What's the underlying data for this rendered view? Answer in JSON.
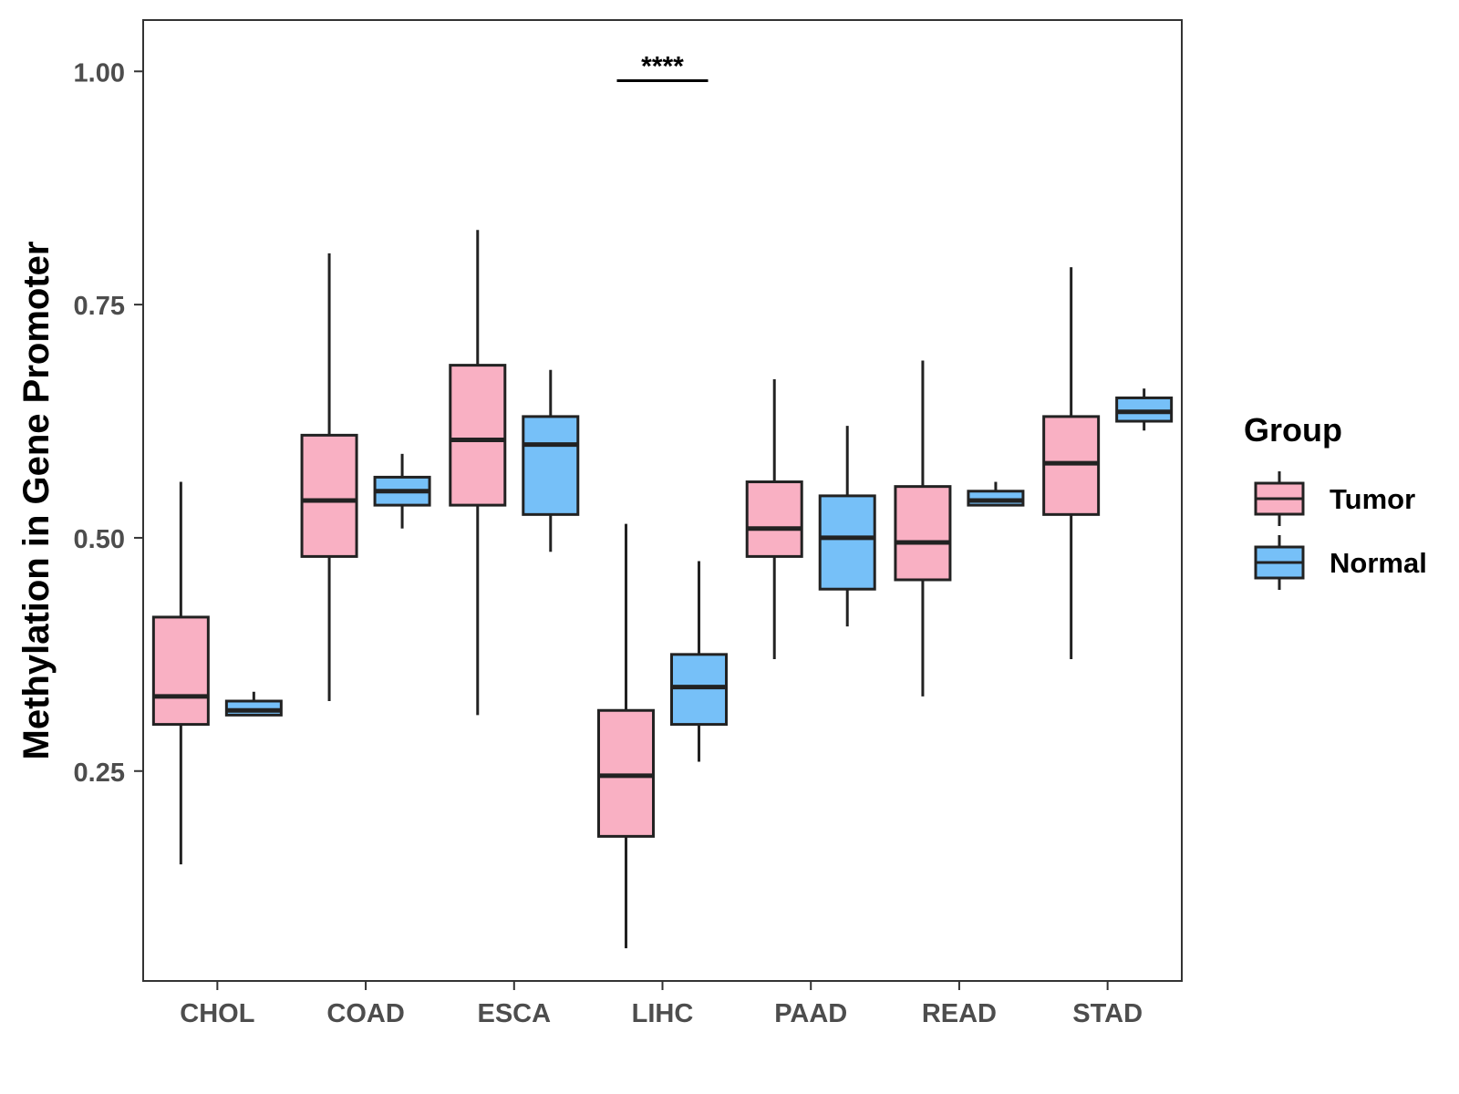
{
  "chart_data": {
    "type": "boxplot",
    "title": "",
    "xlabel": "",
    "ylabel": "Methylation in Gene Promoter",
    "ylim": [
      0.025,
      1.055
    ],
    "y_ticks": [
      "0.25",
      "0.50",
      "0.75",
      "1.00"
    ],
    "y_tick_values": [
      0.25,
      0.5,
      0.75,
      1.0
    ],
    "grid": false,
    "legend": {
      "title": "Group",
      "position": "right"
    },
    "categories": [
      "CHOL",
      "COAD",
      "ESCA",
      "LIHC",
      "PAAD",
      "READ",
      "STAD"
    ],
    "series": [
      {
        "name": "Tumor",
        "color": "#F9B0C3",
        "boxes": [
          {
            "whisker_low": 0.15,
            "q1": 0.3,
            "median": 0.33,
            "q3": 0.415,
            "whisker_high": 0.56
          },
          {
            "whisker_low": 0.325,
            "q1": 0.48,
            "median": 0.54,
            "q3": 0.61,
            "whisker_high": 0.805
          },
          {
            "whisker_low": 0.31,
            "q1": 0.535,
            "median": 0.605,
            "q3": 0.685,
            "whisker_high": 0.83
          },
          {
            "whisker_low": 0.06,
            "q1": 0.18,
            "median": 0.245,
            "q3": 0.315,
            "whisker_high": 0.515
          },
          {
            "whisker_low": 0.37,
            "q1": 0.48,
            "median": 0.51,
            "q3": 0.56,
            "whisker_high": 0.67
          },
          {
            "whisker_low": 0.33,
            "q1": 0.455,
            "median": 0.495,
            "q3": 0.555,
            "whisker_high": 0.69
          },
          {
            "whisker_low": 0.37,
            "q1": 0.525,
            "median": 0.58,
            "q3": 0.63,
            "whisker_high": 0.79
          }
        ]
      },
      {
        "name": "Normal",
        "color": "#76C0F8",
        "boxes": [
          {
            "whisker_low": 0.31,
            "q1": 0.31,
            "median": 0.315,
            "q3": 0.325,
            "whisker_high": 0.335
          },
          {
            "whisker_low": 0.51,
            "q1": 0.535,
            "median": 0.55,
            "q3": 0.565,
            "whisker_high": 0.59
          },
          {
            "whisker_low": 0.485,
            "q1": 0.525,
            "median": 0.6,
            "q3": 0.63,
            "whisker_high": 0.68
          },
          {
            "whisker_low": 0.26,
            "q1": 0.3,
            "median": 0.34,
            "q3": 0.375,
            "whisker_high": 0.475
          },
          {
            "whisker_low": 0.405,
            "q1": 0.445,
            "median": 0.5,
            "q3": 0.545,
            "whisker_high": 0.62
          },
          {
            "whisker_low": 0.535,
            "q1": 0.535,
            "median": 0.54,
            "q3": 0.55,
            "whisker_high": 0.56
          },
          {
            "whisker_low": 0.615,
            "q1": 0.625,
            "median": 0.635,
            "q3": 0.65,
            "whisker_high": 0.66
          }
        ]
      }
    ],
    "annotations": [
      {
        "category": "LIHC",
        "text": "****",
        "y": 0.99
      }
    ]
  }
}
